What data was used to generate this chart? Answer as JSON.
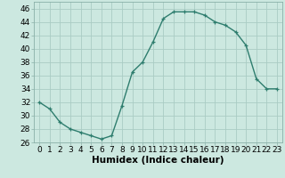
{
  "x": [
    0,
    1,
    2,
    3,
    4,
    5,
    6,
    7,
    8,
    9,
    10,
    11,
    12,
    13,
    14,
    15,
    16,
    17,
    18,
    19,
    20,
    21,
    22,
    23
  ],
  "y": [
    32,
    31,
    29,
    28,
    27.5,
    27,
    26.5,
    27,
    31.5,
    36.5,
    38,
    41,
    44.5,
    45.5,
    45.5,
    45.5,
    45,
    44,
    43.5,
    42.5,
    40.5,
    35.5,
    34,
    34
  ],
  "line_color": "#2e7d6e",
  "marker": "+",
  "bg_color": "#cce8e0",
  "grid_color": "#aaccC4",
  "xlabel": "Humidex (Indice chaleur)",
  "ylim": [
    26,
    47
  ],
  "yticks": [
    26,
    28,
    30,
    32,
    34,
    36,
    38,
    40,
    42,
    44,
    46
  ],
  "xlim": [
    -0.5,
    23.5
  ],
  "xticks": [
    0,
    1,
    2,
    3,
    4,
    5,
    6,
    7,
    8,
    9,
    10,
    11,
    12,
    13,
    14,
    15,
    16,
    17,
    18,
    19,
    20,
    21,
    22,
    23
  ],
  "xlabel_fontsize": 7.5,
  "tick_fontsize": 6.5,
  "line_width": 1.0,
  "marker_size": 3.5
}
